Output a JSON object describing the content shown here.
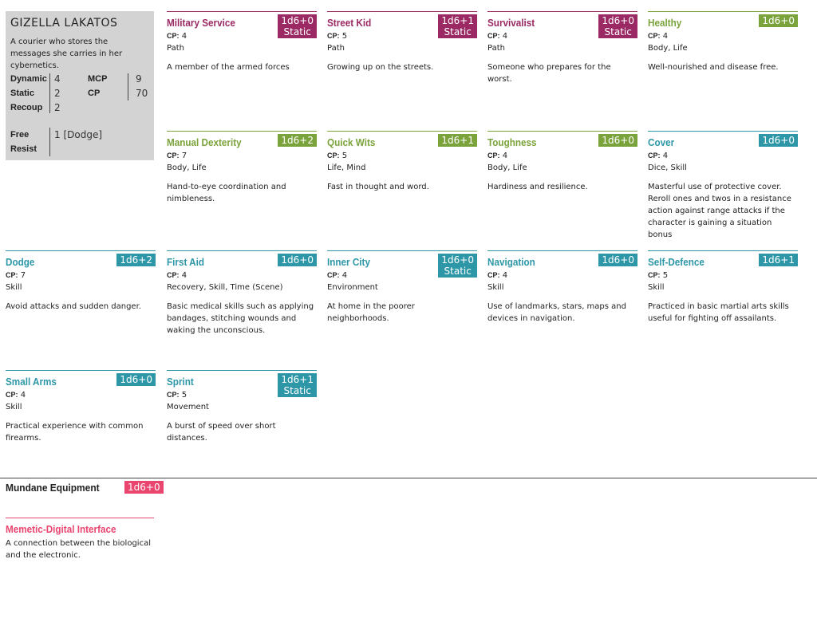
{
  "character": {
    "name": "GIZELLA LAKATOS",
    "description": "A courier who stores the messages she carries in her cybernetics.",
    "stats": {
      "dynamic_label": "Dynamic",
      "dynamic": "4",
      "static_label": "Static",
      "static": "2",
      "recoup_label": "Recoup",
      "recoup": "2",
      "mcp_label": "MCP",
      "mcp": "9",
      "cp_label": "CP",
      "cp": "70",
      "free_label": "Free",
      "resist_label": "Resist",
      "free_resist": "1 [Dodge]"
    }
  },
  "cards": [
    {
      "title": "Military Service",
      "badge1": "1d6+0",
      "badge2": "Static",
      "cp_label": "CP:",
      "cp": "4",
      "tags": "Path",
      "description": "A member of the armed forces"
    },
    {
      "title": "Street Kid",
      "badge1": "1d6+1",
      "badge2": "Static",
      "cp_label": "CP:",
      "cp": "5",
      "tags": "Path",
      "description": "Growing up on the streets."
    },
    {
      "title": "Survivalist",
      "badge1": "1d6+0",
      "badge2": "Static",
      "cp_label": "CP:",
      "cp": "4",
      "tags": "Path",
      "description": "Someone who prepares for the worst."
    },
    {
      "title": "Healthy",
      "badge1": "1d6+0",
      "badge2": "",
      "cp_label": "CP:",
      "cp": "4",
      "tags": "Body, Life",
      "description": "Well-nourished and disease free."
    },
    {
      "title": "Manual Dexterity",
      "badge1": "1d6+2",
      "badge2": "",
      "cp_label": "CP:",
      "cp": "7",
      "tags": "Body, Life",
      "description": "Hand-to-eye coordination and nimbleness."
    },
    {
      "title": "Quick Wits",
      "badge1": "1d6+1",
      "badge2": "",
      "cp_label": "CP:",
      "cp": "5",
      "tags": "Life, Mind",
      "description": "Fast in thought and word."
    },
    {
      "title": "Toughness",
      "badge1": "1d6+0",
      "badge2": "",
      "cp_label": "CP:",
      "cp": "4",
      "tags": "Body, Life",
      "description": "Hardiness and resilience."
    },
    {
      "title": "Cover",
      "badge1": "1d6+0",
      "badge2": "",
      "cp_label": "CP:",
      "cp": "4",
      "tags": "Dice, Skill",
      "description": "Masterful use of protective cover. Reroll ones and twos in a resistance action against range attacks if the character is gaining a situation bonus"
    },
    {
      "title": "Dodge",
      "badge1": "1d6+2",
      "badge2": "",
      "cp_label": "CP:",
      "cp": "7",
      "tags": "Skill",
      "description": "Avoid attacks and sudden danger."
    },
    {
      "title": "First Aid",
      "badge1": "1d6+0",
      "badge2": "",
      "cp_label": "CP:",
      "cp": "4",
      "tags": "Recovery, Skill, Time (Scene)",
      "description": "Basic medical skills such as applying bandages, stitching wounds and waking the unconscious."
    },
    {
      "title": "Inner City",
      "badge1": "1d6+0",
      "badge2": "Static",
      "cp_label": "CP:",
      "cp": "4",
      "tags": "Environment",
      "description": "At home in the poorer neighborhoods."
    },
    {
      "title": "Navigation",
      "badge1": "1d6+0",
      "badge2": "",
      "cp_label": "CP:",
      "cp": "4",
      "tags": "Skill",
      "description": "Use of landmarks, stars, maps and devices in navigation."
    },
    {
      "title": "Self-Defence",
      "badge1": "1d6+1",
      "badge2": "",
      "cp_label": "CP:",
      "cp": "5",
      "tags": "Skill",
      "description": "Practiced in basic martial arts skills useful for fighting off assailants."
    },
    {
      "title": "Small Arms",
      "badge1": "1d6+0",
      "badge2": "",
      "cp_label": "CP:",
      "cp": "4",
      "tags": "Skill",
      "description": "Practical experience with common firearms."
    },
    {
      "title": "Sprint",
      "badge1": "1d6+1",
      "badge2": "Static",
      "cp_label": "CP:",
      "cp": "5",
      "tags": "Movement",
      "description": "A burst of speed over short distances."
    }
  ],
  "equipment": {
    "heading": "Mundane Equipment",
    "badge": "1d6+0",
    "item_title": "Memetic-Digital Interface",
    "item_description": "A connection between the biological and the electronic."
  },
  "colors": {
    "path": "#9b2a64",
    "life": "#7aa33b",
    "skill": "#2d97a8",
    "equipment": "#e9456f",
    "character_box": "#d3d3d3"
  }
}
